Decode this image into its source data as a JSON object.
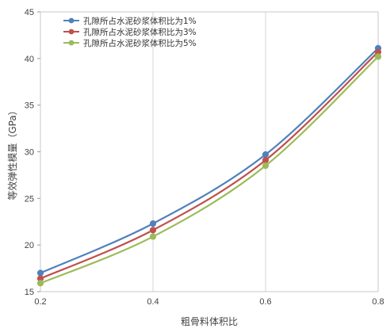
{
  "chart_data": {
    "type": "line",
    "xlabel": "粗骨料体积比",
    "ylabel": "等效弹性模量（GPa）",
    "x": [
      0.2,
      0.4,
      0.6,
      0.8
    ],
    "x_tick_labels": [
      "0.2",
      "0.4",
      "0.6",
      "0.8"
    ],
    "xlim": [
      0.2,
      0.8
    ],
    "ylim": [
      15,
      45
    ],
    "y_ticks": [
      15,
      20,
      25,
      30,
      35,
      40,
      45
    ],
    "grid": "vertical",
    "legend_position": "top-left",
    "series": [
      {
        "name": "孔隙所占水泥砂浆体积比为1%",
        "color": "#4f81bd",
        "values": [
          17.0,
          22.3,
          29.7,
          41.1
        ]
      },
      {
        "name": "孔隙所占水泥砂浆体积比为3%",
        "color": "#c0504d",
        "values": [
          16.4,
          21.6,
          29.1,
          40.7
        ]
      },
      {
        "name": "孔隙所占水泥砂浆体积比为5%",
        "color": "#9bbb59",
        "values": [
          15.9,
          20.9,
          28.5,
          40.2
        ]
      }
    ]
  }
}
